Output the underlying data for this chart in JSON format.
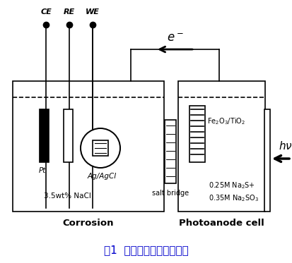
{
  "title": "图1  电化学测试装置示意图",
  "title_color": "#0000CC",
  "bg_color": "#ffffff",
  "ce_label": "CE",
  "re_label": "RE",
  "we_label": "WE",
  "electron_label": "e$^-$",
  "pt_label": "Pt",
  "agcl_label": "Ag/AgCl",
  "nacl_label": "3.5wt% NaCl",
  "corrosion_label": "Corrosion",
  "saltbridge_label": "salt bridge",
  "fe_label": "Fe$_2$O$_3$/TiO$_2$",
  "electrolyte_label": "0.25M Na$_2$S+\n0.35M Na$_2$SO$_3$",
  "photoanode_label": "Photoanode cell",
  "hv_label": "$h\\nu$"
}
